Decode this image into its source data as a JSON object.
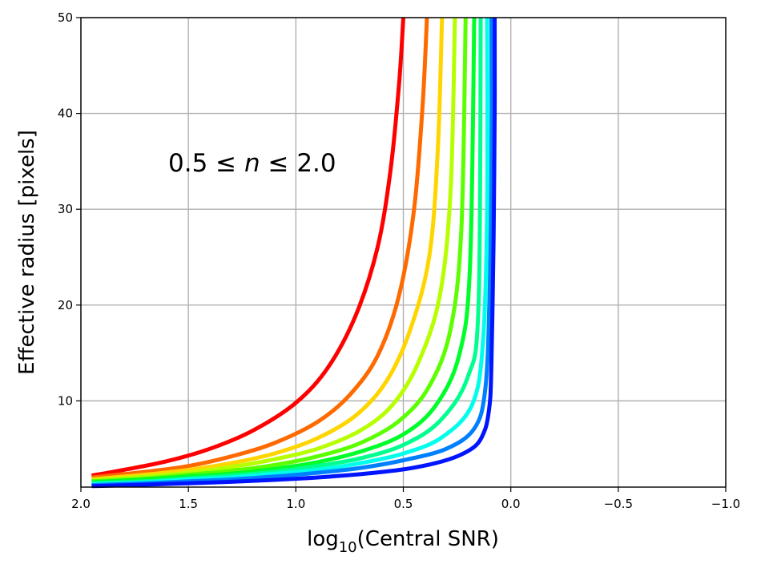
{
  "chart_data": {
    "type": "line",
    "xlabel": "log10(Central SNR)",
    "xlabel_parts": {
      "base": "log",
      "sub": "10",
      "rest": "(Central SNR)"
    },
    "ylabel": "Effective radius [pixels]",
    "annotation": "0.5 ≤ n ≤ 2.0",
    "annotation_parts": {
      "pre": "0.5 ≤ ",
      "var": "n",
      "post": " ≤ 2.0"
    },
    "xlim": [
      2.0,
      -1.0
    ],
    "ylim": [
      1,
      50
    ],
    "x_inverted": true,
    "grid": true,
    "xticks": [
      2.0,
      1.5,
      1.0,
      0.5,
      0.0,
      -0.5,
      -1.0
    ],
    "xtick_labels": [
      "2.0",
      "1.5",
      "1.0",
      "0.5",
      "0.0",
      "−0.5",
      "−1.0"
    ],
    "yticks": [
      10,
      20,
      30,
      40,
      50
    ],
    "ytick_labels": [
      "10",
      "20",
      "30",
      "40",
      "50"
    ],
    "series": [
      {
        "color": "#ff0000",
        "x": [
          1.95,
          1.8,
          1.6,
          1.4,
          1.2,
          1.0,
          0.85,
          0.72,
          0.62,
          0.56,
          0.52,
          0.5
        ],
        "y": [
          2.2,
          2.8,
          3.7,
          5.0,
          6.9,
          9.8,
          13.5,
          19.0,
          26.0,
          34.0,
          43.0,
          50.0
        ]
      },
      {
        "color": "#ff6a00",
        "x": [
          1.95,
          1.7,
          1.5,
          1.3,
          1.1,
          0.9,
          0.75,
          0.62,
          0.52,
          0.45,
          0.41,
          0.39
        ],
        "y": [
          2.0,
          2.6,
          3.2,
          4.2,
          5.6,
          7.8,
          10.6,
          14.7,
          21.0,
          30.0,
          41.0,
          50.0
        ]
      },
      {
        "color": "#ffd500",
        "x": [
          1.95,
          1.7,
          1.5,
          1.3,
          1.1,
          0.9,
          0.72,
          0.58,
          0.47,
          0.38,
          0.34,
          0.32
        ],
        "y": [
          1.8,
          2.3,
          2.8,
          3.5,
          4.5,
          6.1,
          8.5,
          12.0,
          17.3,
          25.0,
          36.0,
          50.0
        ]
      },
      {
        "color": "#b7ff00",
        "x": [
          1.95,
          1.7,
          1.5,
          1.3,
          1.1,
          0.9,
          0.7,
          0.55,
          0.43,
          0.33,
          0.28,
          0.26
        ],
        "y": [
          1.7,
          2.1,
          2.5,
          3.1,
          3.9,
          5.0,
          6.9,
          9.6,
          14.0,
          21.0,
          32.0,
          50.0
        ]
      },
      {
        "color": "#5cff00",
        "x": [
          1.95,
          1.7,
          1.5,
          1.3,
          1.1,
          0.9,
          0.7,
          0.52,
          0.38,
          0.28,
          0.23,
          0.21
        ],
        "y": [
          1.6,
          1.9,
          2.3,
          2.7,
          3.3,
          4.2,
          5.6,
          7.9,
          11.5,
          17.5,
          28.0,
          50.0
        ]
      },
      {
        "color": "#00ff2a",
        "x": [
          1.95,
          1.7,
          1.5,
          1.3,
          1.1,
          0.9,
          0.7,
          0.5,
          0.35,
          0.24,
          0.19,
          0.17
        ],
        "y": [
          1.5,
          1.8,
          2.1,
          2.4,
          2.9,
          3.6,
          4.7,
          6.5,
          9.5,
          14.8,
          24.0,
          50.0
        ]
      },
      {
        "color": "#00ff8f",
        "x": [
          1.95,
          1.7,
          1.5,
          1.3,
          1.1,
          0.9,
          0.7,
          0.5,
          0.33,
          0.2,
          0.15,
          0.14
        ],
        "y": [
          1.4,
          1.6,
          1.9,
          2.2,
          2.6,
          3.2,
          4.0,
          5.4,
          7.9,
          12.5,
          20.0,
          50.0
        ]
      },
      {
        "color": "#00ffea",
        "x": [
          1.95,
          1.7,
          1.5,
          1.3,
          1.1,
          0.9,
          0.7,
          0.5,
          0.32,
          0.18,
          0.13,
          0.11,
          0.11
        ],
        "y": [
          1.3,
          1.5,
          1.8,
          2.0,
          2.4,
          2.8,
          3.5,
          4.5,
          6.2,
          9.6,
          16.0,
          30.0,
          50.0
        ]
      },
      {
        "color": "#0080ff",
        "x": [
          1.95,
          1.7,
          1.5,
          1.3,
          1.1,
          0.9,
          0.7,
          0.5,
          0.3,
          0.17,
          0.12,
          0.1,
          0.09,
          0.09
        ],
        "y": [
          1.2,
          1.4,
          1.6,
          1.8,
          2.1,
          2.5,
          3.0,
          3.8,
          5.0,
          7.1,
          11.0,
          20.0,
          35.0,
          50.0
        ]
      },
      {
        "color": "#0015ff",
        "x": [
          1.95,
          1.7,
          1.5,
          1.3,
          1.1,
          0.9,
          0.7,
          0.5,
          0.35,
          0.24,
          0.16,
          0.12,
          0.105,
          0.095,
          0.09,
          0.085,
          0.08,
          0.075,
          0.075
        ],
        "y": [
          1.1,
          1.25,
          1.4,
          1.55,
          1.75,
          2.0,
          2.35,
          2.85,
          3.5,
          4.3,
          5.4,
          7.0,
          8.5,
          10.5,
          14.0,
          20.0,
          27.0,
          40.0,
          50.0
        ]
      }
    ]
  }
}
